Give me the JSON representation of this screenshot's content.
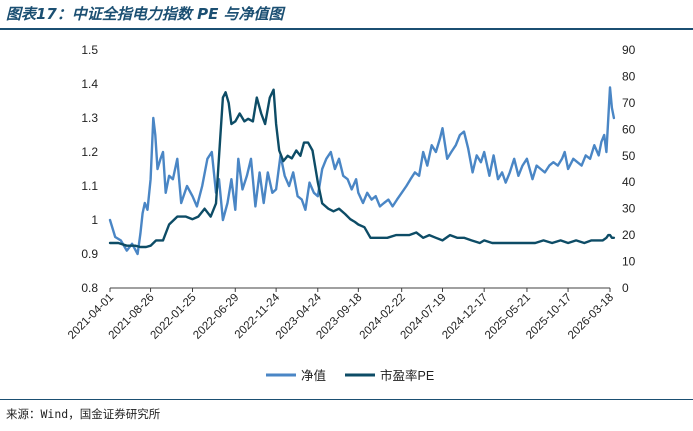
{
  "header": {
    "title": "图表17：中证全指电力指数 PE 与净值图"
  },
  "footer": {
    "source": "来源：Wind，国金证券研究所"
  },
  "colors": {
    "nav": "#4a86c5",
    "pe": "#0d4c66",
    "rule": "#1b4f72",
    "axis": "#404040"
  },
  "chart_data": {
    "type": "line",
    "title": "中证全指电力指数 PE 与净值图",
    "x_tick_labels": [
      "2021-04-01",
      "2021-08-26",
      "2022-01-25",
      "2022-06-29",
      "2022-11-24",
      "2023-04-24",
      "2023-09-18",
      "2024-02-22",
      "2024-07-19",
      "2024-12-17",
      "2025-05-21",
      "2025-10-17",
      "2026-03-18"
    ],
    "y_left": {
      "ticks": [
        "0.8",
        "0.9",
        "1",
        "1.1",
        "1.2",
        "1.3",
        "1.4",
        "1.5"
      ],
      "ylim": [
        0.8,
        1.5
      ]
    },
    "y_right": {
      "ticks": [
        "0",
        "10",
        "20",
        "30",
        "40",
        "50",
        "60",
        "70",
        "80",
        "90"
      ],
      "ylim": [
        0,
        90
      ]
    },
    "grid": false,
    "legend": "bottom",
    "series": [
      {
        "name": "净值",
        "axis": "left",
        "color": "#4a86c5",
        "x": [
          "2021-04-01",
          "2021-04-20",
          "2021-05-10",
          "2021-06-01",
          "2021-06-20",
          "2021-07-10",
          "2021-07-20",
          "2021-07-28",
          "2021-08-05",
          "2021-08-15",
          "2021-08-26",
          "2021-09-05",
          "2021-09-12",
          "2021-09-20",
          "2021-10-01",
          "2021-10-10",
          "2021-10-20",
          "2021-11-01",
          "2021-11-15",
          "2021-12-01",
          "2021-12-15",
          "2022-01-05",
          "2022-01-25",
          "2022-02-10",
          "2022-03-01",
          "2022-03-20",
          "2022-04-05",
          "2022-04-20",
          "2022-05-01",
          "2022-05-15",
          "2022-06-01",
          "2022-06-15",
          "2022-06-29",
          "2022-07-10",
          "2022-07-25",
          "2022-08-10",
          "2022-08-25",
          "2022-09-10",
          "2022-09-25",
          "2022-10-10",
          "2022-10-25",
          "2022-11-10",
          "2022-11-24",
          "2022-12-10",
          "2022-12-25",
          "2023-01-10",
          "2023-01-25",
          "2023-02-10",
          "2023-02-25",
          "2023-03-10",
          "2023-03-25",
          "2023-04-10",
          "2023-04-24",
          "2023-05-10",
          "2023-05-25",
          "2023-06-10",
          "2023-06-25",
          "2023-07-10",
          "2023-07-25",
          "2023-08-10",
          "2023-08-25",
          "2023-09-10",
          "2023-09-18",
          "2023-10-05",
          "2023-10-20",
          "2023-11-05",
          "2023-11-20",
          "2023-12-05",
          "2023-12-20",
          "2024-01-05",
          "2024-01-20",
          "2024-02-05",
          "2024-02-22",
          "2024-03-10",
          "2024-03-25",
          "2024-04-10",
          "2024-04-25",
          "2024-05-10",
          "2024-05-25",
          "2024-06-10",
          "2024-06-25",
          "2024-07-10",
          "2024-07-19",
          "2024-08-05",
          "2024-08-20",
          "2024-09-05",
          "2024-09-20",
          "2024-10-05",
          "2024-10-20",
          "2024-11-05",
          "2024-11-20",
          "2024-12-05",
          "2024-12-17",
          "2025-01-05",
          "2025-01-20",
          "2025-02-05",
          "2025-02-20",
          "2025-03-05",
          "2025-03-20",
          "2025-04-05",
          "2025-04-20",
          "2025-05-05",
          "2025-05-21",
          "2025-06-10",
          "2025-06-25",
          "2025-07-10",
          "2025-07-25",
          "2025-08-10",
          "2025-08-25",
          "2025-09-10",
          "2025-09-25",
          "2025-10-05",
          "2025-10-17",
          "2025-11-05",
          "2025-11-20",
          "2025-12-05",
          "2025-12-20",
          "2026-01-05",
          "2026-01-20",
          "2026-02-05",
          "2026-02-15",
          "2026-02-25",
          "2026-03-05",
          "2026-03-12",
          "2026-03-18",
          "2026-03-25",
          "2026-04-01"
        ],
        "y": [
          1.0,
          0.95,
          0.94,
          0.91,
          0.93,
          0.9,
          0.96,
          1.02,
          1.05,
          1.03,
          1.12,
          1.3,
          1.25,
          1.15,
          1.18,
          1.2,
          1.08,
          1.13,
          1.12,
          1.18,
          1.05,
          1.1,
          1.07,
          1.04,
          1.1,
          1.18,
          1.2,
          1.08,
          1.12,
          1.0,
          1.05,
          1.12,
          1.03,
          1.18,
          1.09,
          1.13,
          1.18,
          1.04,
          1.14,
          1.05,
          1.14,
          1.08,
          1.09,
          1.19,
          1.13,
          1.1,
          1.14,
          1.07,
          1.06,
          1.03,
          1.11,
          1.08,
          1.07,
          1.15,
          1.18,
          1.2,
          1.15,
          1.18,
          1.13,
          1.12,
          1.09,
          1.12,
          1.08,
          1.05,
          1.08,
          1.06,
          1.07,
          1.04,
          1.05,
          1.06,
          1.04,
          1.06,
          1.08,
          1.1,
          1.12,
          1.14,
          1.13,
          1.2,
          1.16,
          1.22,
          1.2,
          1.24,
          1.27,
          1.18,
          1.2,
          1.22,
          1.25,
          1.26,
          1.21,
          1.14,
          1.19,
          1.17,
          1.2,
          1.13,
          1.19,
          1.12,
          1.14,
          1.11,
          1.14,
          1.18,
          1.13,
          1.16,
          1.18,
          1.12,
          1.16,
          1.15,
          1.14,
          1.16,
          1.17,
          1.16,
          1.18,
          1.2,
          1.15,
          1.18,
          1.17,
          1.16,
          1.19,
          1.18,
          1.22,
          1.19,
          1.23,
          1.25,
          1.2,
          1.3,
          1.39,
          1.33,
          1.3
        ]
      },
      {
        "name": "市盈率PE",
        "axis": "right",
        "color": "#0d4c66",
        "x": [
          "2021-04-01",
          "2021-05-01",
          "2021-06-01",
          "2021-07-01",
          "2021-07-20",
          "2021-08-10",
          "2021-08-26",
          "2021-09-15",
          "2021-10-10",
          "2021-11-01",
          "2021-12-01",
          "2022-01-01",
          "2022-01-25",
          "2022-02-15",
          "2022-03-10",
          "2022-04-01",
          "2022-04-20",
          "2022-05-05",
          "2022-05-15",
          "2022-05-25",
          "2022-06-05",
          "2022-06-15",
          "2022-06-29",
          "2022-07-15",
          "2022-08-01",
          "2022-08-15",
          "2022-09-01",
          "2022-09-15",
          "2022-10-01",
          "2022-10-15",
          "2022-11-01",
          "2022-11-15",
          "2022-11-24",
          "2022-12-05",
          "2022-12-20",
          "2023-01-05",
          "2023-01-20",
          "2023-02-05",
          "2023-02-20",
          "2023-03-05",
          "2023-03-20",
          "2023-04-05",
          "2023-04-24",
          "2023-05-10",
          "2023-06-01",
          "2023-06-20",
          "2023-07-10",
          "2023-08-01",
          "2023-08-20",
          "2023-09-05",
          "2023-09-18",
          "2023-10-10",
          "2023-11-01",
          "2023-12-01",
          "2024-01-01",
          "2024-02-01",
          "2024-02-22",
          "2024-03-20",
          "2024-04-15",
          "2024-05-10",
          "2024-06-01",
          "2024-06-25",
          "2024-07-19",
          "2024-08-15",
          "2024-09-10",
          "2024-10-05",
          "2024-11-01",
          "2024-12-01",
          "2024-12-17",
          "2025-01-15",
          "2025-02-15",
          "2025-03-15",
          "2025-04-15",
          "2025-05-21",
          "2025-06-20",
          "2025-07-20",
          "2025-08-20",
          "2025-09-20",
          "2025-10-17",
          "2025-11-15",
          "2025-12-15",
          "2026-01-10",
          "2026-02-01",
          "2026-02-20",
          "2026-03-05",
          "2026-03-12",
          "2026-03-18",
          "2026-03-25",
          "2026-04-01"
        ],
        "y": [
          17,
          17,
          16,
          16,
          15.5,
          15.5,
          16,
          18,
          18,
          24,
          27,
          27,
          26,
          27,
          30,
          27,
          32,
          56,
          72,
          74,
          70,
          62,
          63,
          66,
          63,
          64,
          63,
          72,
          66,
          62,
          72,
          75,
          62,
          52,
          48,
          50,
          49,
          52,
          50,
          55,
          55,
          52,
          40,
          32,
          30,
          29,
          30,
          28,
          26,
          25,
          24,
          23,
          19,
          19,
          19,
          20,
          20,
          20,
          21,
          19,
          20,
          19,
          18,
          20,
          19,
          19,
          18,
          17,
          18,
          17,
          17,
          17,
          17,
          17,
          17,
          18,
          17,
          18,
          17,
          18,
          17,
          18,
          18,
          18,
          19,
          20,
          20,
          19,
          19
        ]
      }
    ]
  }
}
